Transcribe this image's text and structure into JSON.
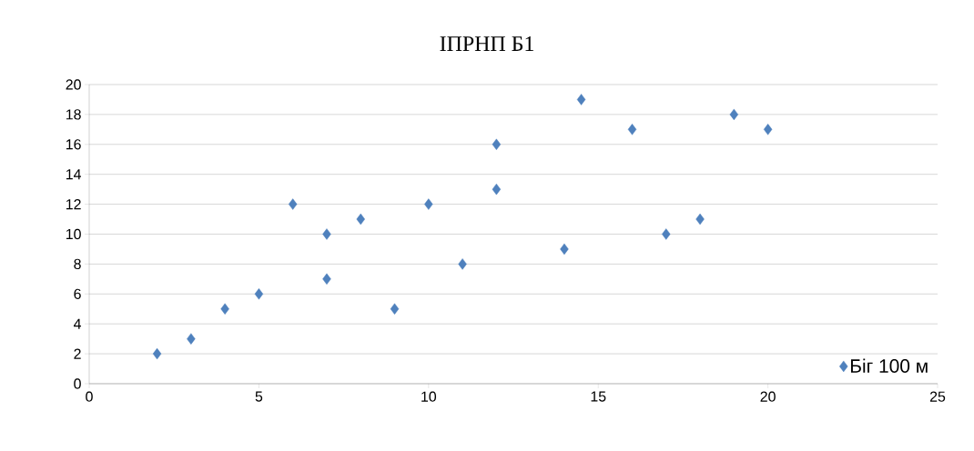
{
  "chart_data": {
    "type": "scatter",
    "title": "ІПРНП Б1",
    "series": [
      {
        "name": "Біг 100 м",
        "color": "#4f81bd",
        "x": [
          2,
          3,
          4,
          5,
          6,
          7,
          7,
          8,
          9,
          10,
          11,
          12,
          12,
          14,
          14.5,
          16,
          17,
          18,
          19,
          20
        ],
        "values": [
          2,
          3,
          5,
          6,
          12,
          10,
          7,
          11,
          5,
          12,
          8,
          16,
          13,
          9,
          19,
          17,
          10,
          11,
          18,
          17
        ]
      }
    ],
    "xlim": [
      0,
      25
    ],
    "ylim": [
      0,
      20
    ],
    "xticks": [
      0,
      5,
      10,
      15,
      20,
      25
    ],
    "yticks": [
      0,
      2,
      4,
      6,
      8,
      10,
      12,
      14,
      16,
      18,
      20
    ],
    "grid": "y",
    "legend": "bottom right",
    "marker": "diamond"
  }
}
